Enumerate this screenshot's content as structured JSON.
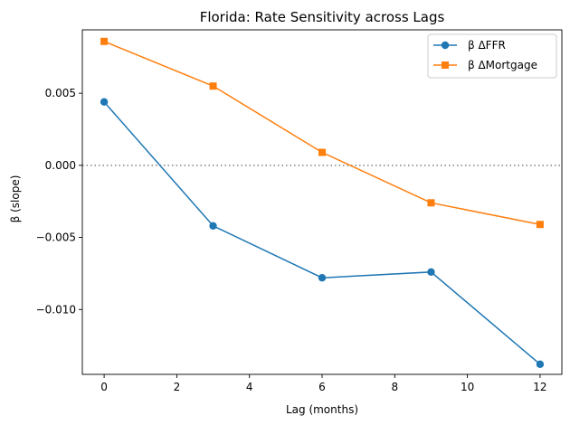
{
  "chart_data": {
    "type": "line",
    "title": "Florida: Rate Sensitivity across Lags",
    "xlabel": "Lag (months)",
    "ylabel": "β (slope)",
    "x": [
      0,
      3,
      6,
      9,
      12
    ],
    "xlim": [
      -0.6,
      12.6
    ],
    "ylim": [
      -0.0145,
      0.0094
    ],
    "xticks": [
      0,
      2,
      4,
      6,
      8,
      10,
      12
    ],
    "xtick_labels": [
      "0",
      "2",
      "4",
      "6",
      "8",
      "10",
      "12"
    ],
    "yticks": [
      0.005,
      0.0,
      -0.005,
      -0.01
    ],
    "ytick_labels": [
      "0.005",
      "0.000",
      "−0.005",
      "−0.010"
    ],
    "reference_line": {
      "y": 0,
      "style": "dotted",
      "color": "#808080"
    },
    "grid": false,
    "legend_position": "top-right",
    "series": [
      {
        "name": "β ΔFFR",
        "color": "#1f77b4",
        "marker": "circle",
        "values": [
          0.0044,
          -0.0042,
          -0.0078,
          -0.0074,
          -0.0138
        ]
      },
      {
        "name": "β ΔMortgage",
        "color": "#ff7f0e",
        "marker": "square",
        "values": [
          0.0086,
          0.0055,
          0.0009,
          -0.0026,
          -0.0041
        ]
      }
    ]
  }
}
